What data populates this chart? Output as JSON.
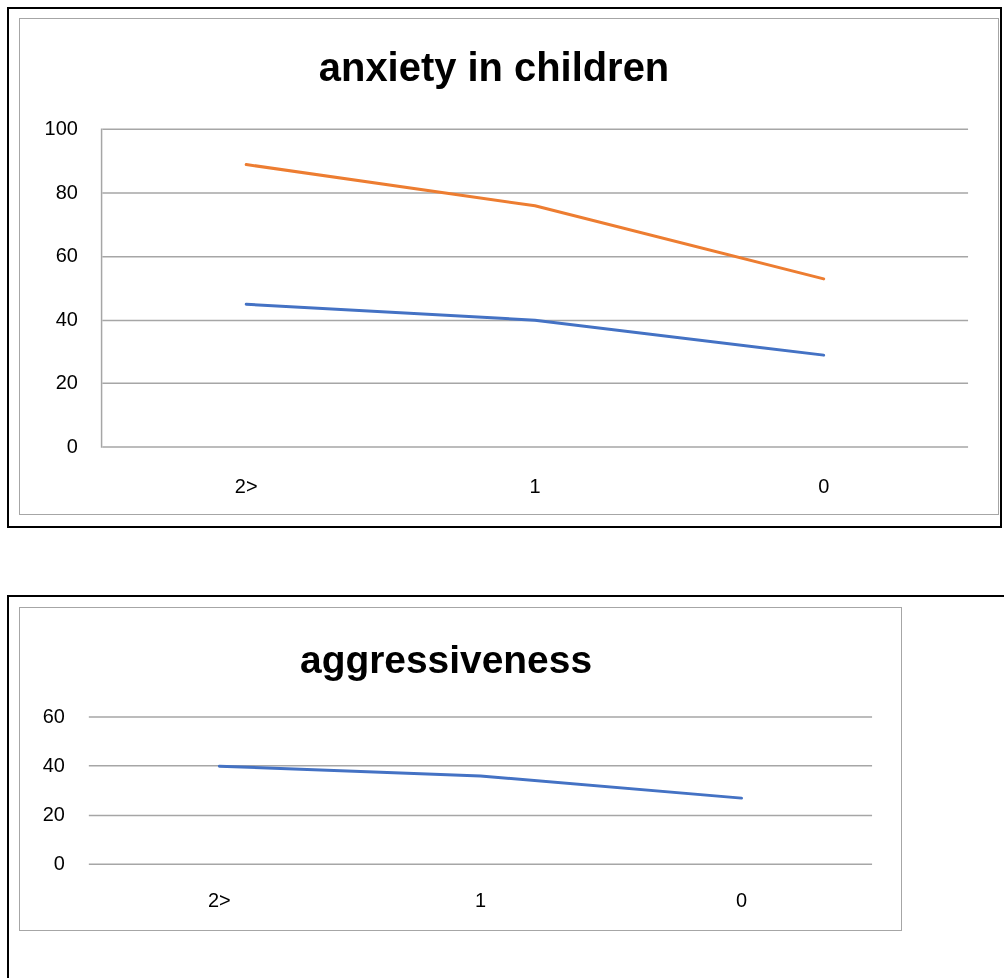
{
  "chart_data": [
    {
      "type": "line",
      "title": "anxiety in children",
      "categories": [
        "2>",
        "1",
        "0"
      ],
      "series": [
        {
          "color": "#ed7d31",
          "values": [
            89,
            76,
            53
          ]
        },
        {
          "color": "#4472c4",
          "values": [
            45,
            40,
            29
          ]
        }
      ],
      "ylim": [
        0,
        100
      ],
      "yticks": [
        0,
        20,
        40,
        60,
        80,
        100
      ],
      "grid": "y",
      "legend": false,
      "marker": "none"
    },
    {
      "type": "line",
      "title": "aggressiveness",
      "categories": [
        "2>",
        "1",
        "0"
      ],
      "series": [
        {
          "color": "#4472c4",
          "values": [
            40,
            36,
            27
          ]
        }
      ],
      "ylim": [
        0,
        60
      ],
      "yticks": [
        0,
        20,
        40,
        60
      ],
      "grid": "y",
      "legend": false,
      "marker": "none"
    }
  ]
}
